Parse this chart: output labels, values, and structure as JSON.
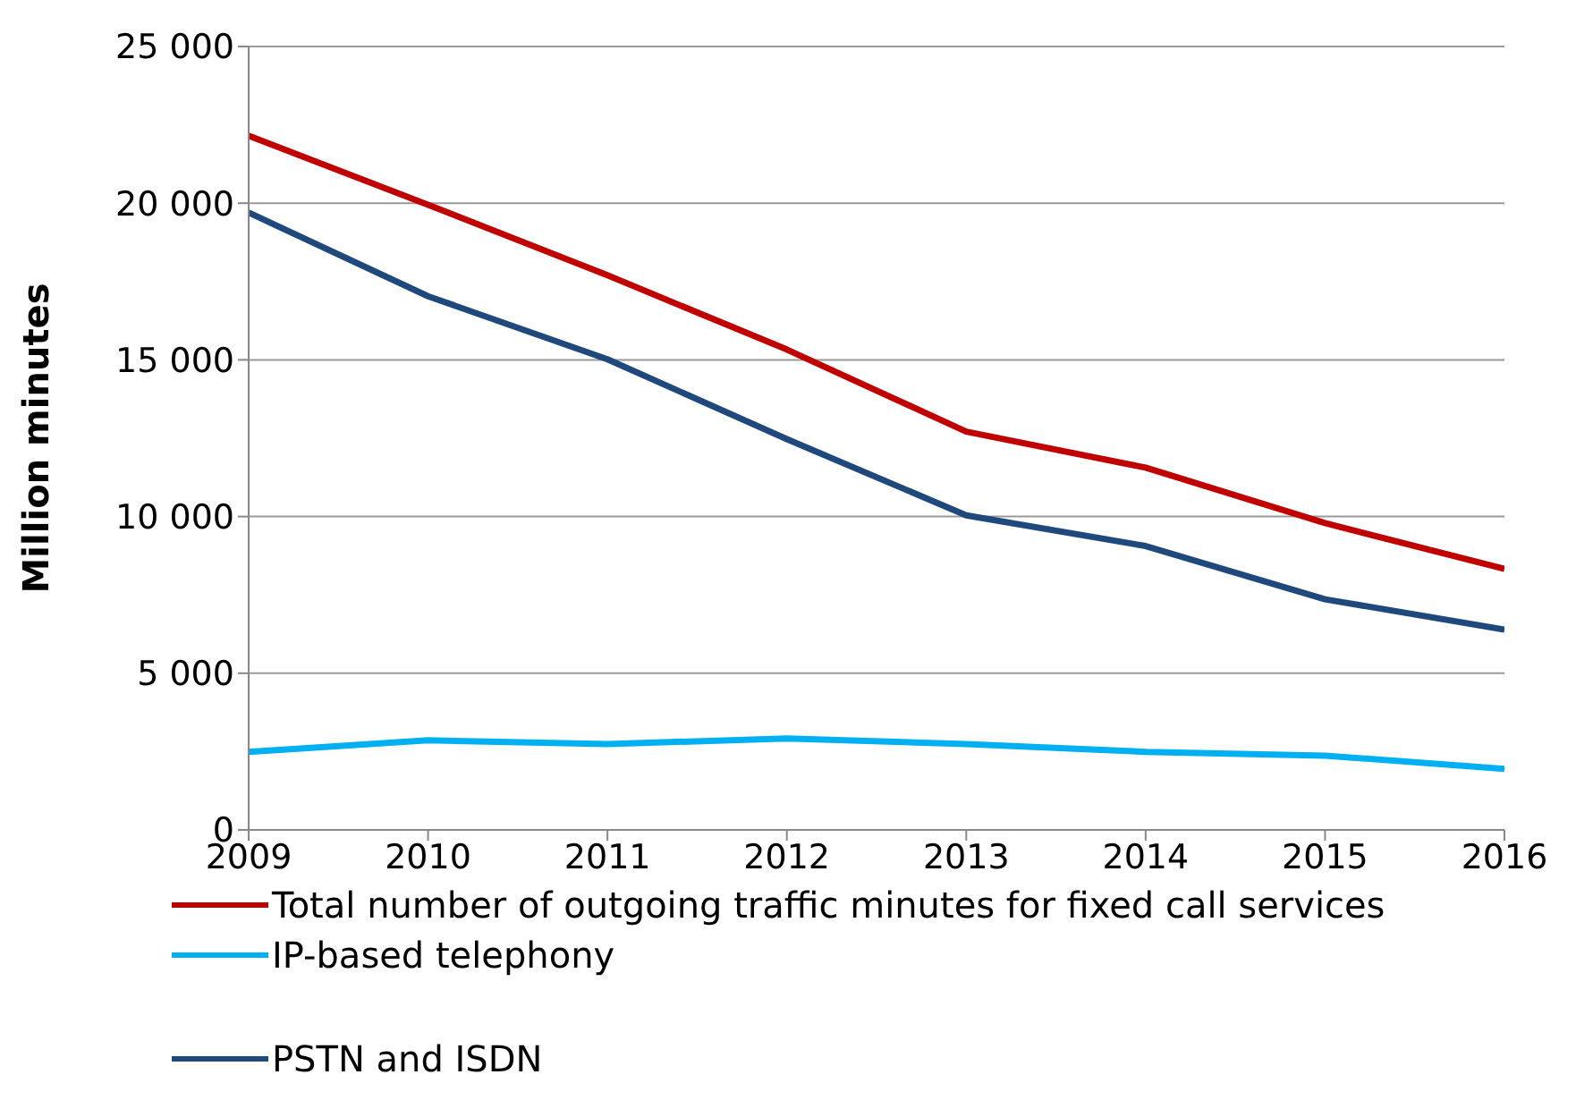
{
  "chart_data": {
    "type": "line",
    "ylabel": "Million minutes",
    "x": [
      2009,
      2010,
      2011,
      2012,
      2013,
      2014,
      2015,
      2016
    ],
    "series": [
      {
        "name": "Total number of outgoing traffic minutes for fixed call services",
        "color": "#c00000",
        "values": [
          22150,
          19950,
          17700,
          15330,
          12710,
          11560,
          9790,
          8330
        ]
      },
      {
        "name": "IP-based telephony",
        "color": "#00b0f0",
        "values": [
          2490,
          2860,
          2740,
          2920,
          2740,
          2490,
          2370,
          1950
        ]
      },
      {
        "name": "PSTN and ISDN",
        "color": "#1f497d",
        "values": [
          19700,
          17030,
          15020,
          12470,
          10040,
          9060,
          7360,
          6390
        ]
      }
    ],
    "xlim": [
      2009,
      2016
    ],
    "xticks": [
      2009,
      2010,
      2011,
      2012,
      2013,
      2014,
      2015,
      2016
    ],
    "ylim": [
      0,
      25000
    ],
    "yticks": [
      0,
      {
        "value": 5000,
        "label": "5 000"
      },
      {
        "value": 10000,
        "label": "10 000"
      },
      {
        "value": 15000,
        "label": "15 000"
      },
      {
        "value": 20000,
        "label": "20 000"
      },
      {
        "value": 25000,
        "label": "25 000"
      }
    ],
    "grid": "y",
    "legend": "bottom",
    "marker": "none",
    "line_style": "solid"
  }
}
